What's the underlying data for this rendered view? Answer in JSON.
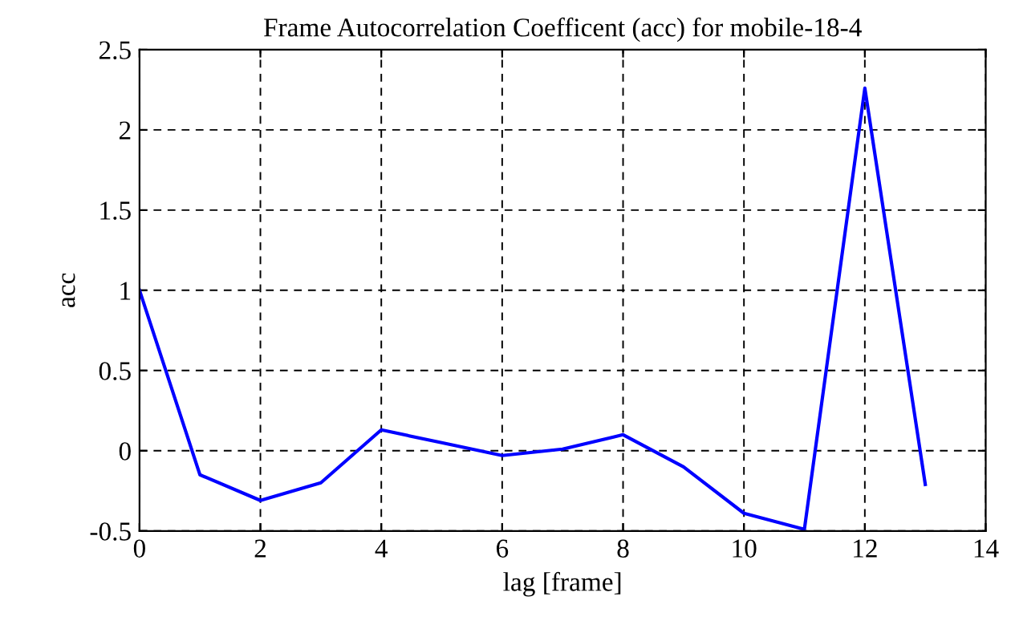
{
  "chart_data": {
    "type": "line",
    "title": "Frame Autocorrelation Coefficent (acc) for mobile-18-4",
    "xlabel": "lag [frame]",
    "ylabel": "acc",
    "x": [
      0,
      1,
      2,
      3,
      4,
      5,
      6,
      7,
      8,
      9,
      10,
      11,
      12,
      13
    ],
    "series": [
      {
        "color": "#0000ff",
        "values": [
          1.0,
          -0.15,
          -0.31,
          -0.2,
          0.13,
          0.05,
          -0.03,
          0.01,
          0.1,
          -0.1,
          -0.39,
          -0.49,
          2.26,
          -0.21
        ]
      }
    ],
    "xlim": [
      0,
      14
    ],
    "xticks": [
      0,
      2,
      4,
      6,
      8,
      10,
      12,
      14
    ],
    "ylim": [
      -0.5,
      2.5
    ],
    "yticks": [
      -0.5,
      0,
      0.5,
      1,
      1.5,
      2,
      2.5
    ],
    "grid": true,
    "legend": false,
    "marker": "none",
    "line_style": "solid"
  }
}
